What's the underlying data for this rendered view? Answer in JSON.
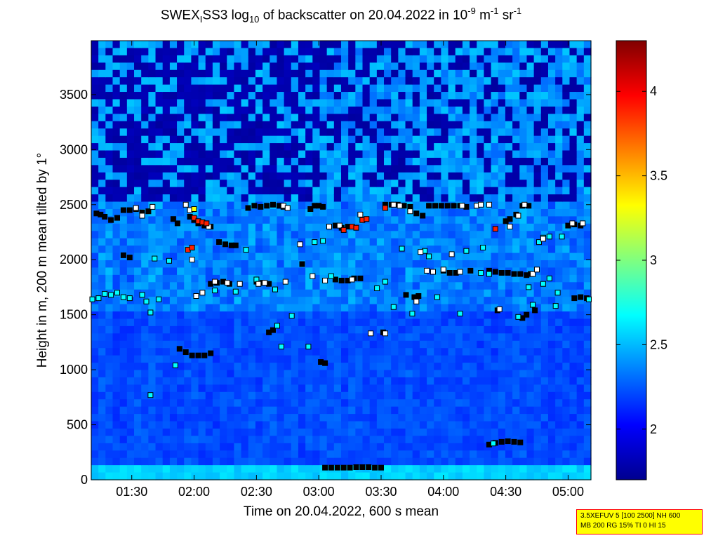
{
  "title": {
    "prefix": "SWEX",
    "sub1": "I",
    "mid": "SS3 log",
    "sub2": "10",
    "rest": " of backscatter on 20.04.2022 in 10",
    "sup1": "-9",
    "unit1": " m",
    "sup2": "-1",
    "unit2": " sr",
    "sup3": "-1"
  },
  "info_box": {
    "line1": "3.5XEFUV 5 [100 2500] NH 600",
    "line2": "MB 200 RG 15% TI 0 HI 15"
  },
  "chart_data": {
    "type": "heatmap",
    "xlabel": "Time on 20.04.2022, 600 s mean",
    "ylabel": "Height in m, 200 m mean tilted by 1°",
    "x_range_minutes": [
      70.5,
      311
    ],
    "ylim": [
      0,
      3990
    ],
    "xticks": [
      {
        "label": "01:30",
        "value": 90
      },
      {
        "label": "02:00",
        "value": 120
      },
      {
        "label": "02:30",
        "value": 150
      },
      {
        "label": "03:00",
        "value": 180
      },
      {
        "label": "03:30",
        "value": 210
      },
      {
        "label": "04:00",
        "value": 240
      },
      {
        "label": "04:30",
        "value": 270
      },
      {
        "label": "05:00",
        "value": 300
      }
    ],
    "yticks": [
      0,
      500,
      1000,
      1500,
      2000,
      2500,
      3000,
      3500
    ],
    "colorbar": {
      "min": 1.7,
      "max": 4.3,
      "ticks": [
        2,
        2.5,
        3,
        3.5,
        4
      ],
      "colormap": "jet"
    },
    "marker_layers": [
      {
        "level": "low",
        "color": "#000000",
        "points": [
          [
            183,
            110
          ],
          [
            186,
            110
          ],
          [
            189,
            110
          ],
          [
            192,
            110
          ],
          [
            195,
            110
          ],
          [
            198,
            115
          ],
          [
            201,
            115
          ],
          [
            204,
            115
          ],
          [
            207,
            110
          ],
          [
            210,
            110
          ],
          [
            262,
            320
          ],
          [
            265,
            335
          ],
          [
            268,
            345
          ],
          [
            271,
            350
          ],
          [
            274,
            345
          ],
          [
            277,
            340
          ]
        ]
      },
      {
        "level": "mid",
        "color": "#000000",
        "points": [
          [
            73,
            2420
          ],
          [
            75,
            2410
          ],
          [
            77,
            2390
          ],
          [
            80,
            2360
          ],
          [
            83,
            2380
          ],
          [
            86,
            2450
          ],
          [
            89,
            2450
          ],
          [
            92,
            2460
          ],
          [
            95,
            2430
          ],
          [
            98,
            2440
          ],
          [
            110,
            2370
          ],
          [
            112,
            2330
          ],
          [
            118,
            2390
          ],
          [
            120,
            2360
          ],
          [
            122,
            2330
          ],
          [
            125,
            2310
          ],
          [
            128,
            2300
          ],
          [
            146,
            2470
          ],
          [
            149,
            2490
          ],
          [
            152,
            2480
          ],
          [
            155,
            2490
          ],
          [
            158,
            2500
          ],
          [
            161,
            2490
          ],
          [
            163,
            2480
          ],
          [
            172,
            1960
          ],
          [
            176,
            2460
          ],
          [
            178,
            2490
          ],
          [
            180,
            2490
          ],
          [
            182,
            2480
          ],
          [
            185,
            2300
          ],
          [
            188,
            2310
          ],
          [
            191,
            2290
          ],
          [
            194,
            2300
          ],
          [
            212,
            2500
          ],
          [
            215,
            2500
          ],
          [
            218,
            2500
          ],
          [
            221,
            2490
          ],
          [
            224,
            2480
          ],
          [
            227,
            2420
          ],
          [
            230,
            2400
          ],
          [
            233,
            2490
          ],
          [
            236,
            2490
          ],
          [
            239,
            2490
          ],
          [
            242,
            2490
          ],
          [
            245,
            2490
          ],
          [
            248,
            2490
          ],
          [
            251,
            2480
          ],
          [
            270,
            2350
          ],
          [
            272,
            2370
          ],
          [
            275,
            2410
          ],
          [
            278,
            2490
          ],
          [
            281,
            2490
          ],
          [
            300,
            2310
          ],
          [
            303,
            2320
          ],
          [
            306,
            2310
          ],
          [
            86,
            2040
          ],
          [
            89,
            2020
          ],
          [
            113,
            1190
          ],
          [
            116,
            1160
          ],
          [
            119,
            1130
          ],
          [
            122,
            1130
          ],
          [
            125,
            1130
          ],
          [
            128,
            1150
          ],
          [
            132,
            2160
          ],
          [
            135,
            2140
          ],
          [
            138,
            2130
          ],
          [
            140,
            2130
          ],
          [
            128,
            1780
          ],
          [
            131,
            1790
          ],
          [
            134,
            1800
          ],
          [
            137,
            1780
          ],
          [
            150,
            1800
          ],
          [
            153,
            1790
          ],
          [
            156,
            1780
          ],
          [
            188,
            1820
          ],
          [
            191,
            1810
          ],
          [
            194,
            1810
          ],
          [
            197,
            1830
          ],
          [
            200,
            1830
          ],
          [
            240,
            1900
          ],
          [
            243,
            1880
          ],
          [
            246,
            1880
          ],
          [
            262,
            1900
          ],
          [
            265,
            1890
          ],
          [
            268,
            1880
          ],
          [
            271,
            1880
          ],
          [
            274,
            1870
          ],
          [
            277,
            1870
          ],
          [
            280,
            1860
          ],
          [
            282,
            1870
          ],
          [
            156,
            1340
          ],
          [
            158,
            1360
          ],
          [
            181,
            1070
          ],
          [
            183,
            1060
          ],
          [
            211,
            1340
          ],
          [
            222,
            1680
          ],
          [
            226,
            1660
          ],
          [
            228,
            1670
          ],
          [
            253,
            1900
          ],
          [
            303,
            1650
          ],
          [
            306,
            1660
          ],
          [
            309,
            1650
          ],
          [
            266,
            1540
          ],
          [
            278,
            1470
          ],
          [
            280,
            1500
          ],
          [
            284,
            1540
          ]
        ]
      },
      {
        "level": "cyan",
        "color": "#00ffff",
        "points": [
          [
            71,
            1640
          ],
          [
            74,
            1650
          ],
          [
            77,
            1690
          ],
          [
            80,
            1680
          ],
          [
            83,
            1700
          ],
          [
            86,
            1660
          ],
          [
            89,
            1650
          ],
          [
            95,
            1680
          ],
          [
            97,
            1620
          ],
          [
            99,
            1520
          ],
          [
            101,
            2010
          ],
          [
            103,
            1640
          ],
          [
            108,
            1990
          ],
          [
            111,
            1040
          ],
          [
            130,
            1720
          ],
          [
            140,
            1710
          ],
          [
            145,
            2090
          ],
          [
            150,
            1820
          ],
          [
            159,
            1730
          ],
          [
            160,
            1400
          ],
          [
            162,
            1210
          ],
          [
            167,
            1490
          ],
          [
            175,
            1210
          ],
          [
            178,
            2160
          ],
          [
            182,
            2170
          ],
          [
            186,
            1850
          ],
          [
            208,
            1740
          ],
          [
            212,
            1800
          ],
          [
            216,
            1570
          ],
          [
            220,
            2100
          ],
          [
            225,
            1510
          ],
          [
            231,
            2080
          ],
          [
            233,
            2030
          ],
          [
            237,
            1660
          ],
          [
            248,
            1510
          ],
          [
            251,
            2080
          ],
          [
            259,
            2110
          ],
          [
            276,
            1480
          ],
          [
            283,
            1590
          ],
          [
            286,
            2160
          ],
          [
            288,
            2200
          ],
          [
            291,
            2210
          ],
          [
            294,
            1580
          ],
          [
            288,
            1780
          ],
          [
            291,
            1830
          ],
          [
            295,
            1700
          ],
          [
            297,
            2210
          ],
          [
            310,
            1640
          ],
          [
            99,
            770
          ],
          [
            264,
            330
          ],
          [
            281,
            1750
          ],
          [
            262,
            1870
          ],
          [
            258,
            1880
          ]
        ]
      },
      {
        "level": "white",
        "color": "#ffffff",
        "points": [
          [
            92,
            2470
          ],
          [
            95,
            2400
          ],
          [
            100,
            2480
          ],
          [
            116,
            2500
          ],
          [
            118,
            2450
          ],
          [
            119,
            2000
          ],
          [
            121,
            1670
          ],
          [
            124,
            1700
          ],
          [
            127,
            2300
          ],
          [
            130,
            1800
          ],
          [
            136,
            1790
          ],
          [
            142,
            1780
          ],
          [
            151,
            1780
          ],
          [
            154,
            1790
          ],
          [
            163,
            2490
          ],
          [
            171,
            2140
          ],
          [
            177,
            1850
          ],
          [
            183,
            1810
          ],
          [
            185,
            2300
          ],
          [
            190,
            2310
          ],
          [
            196,
            1820
          ],
          [
            200,
            2410
          ],
          [
            205,
            1330
          ],
          [
            212,
            1330
          ],
          [
            216,
            2500
          ],
          [
            219,
            2490
          ],
          [
            224,
            2440
          ],
          [
            227,
            1620
          ],
          [
            229,
            2070
          ],
          [
            232,
            1900
          ],
          [
            235,
            1890
          ],
          [
            244,
            2050
          ],
          [
            249,
            2490
          ],
          [
            256,
            2490
          ],
          [
            258,
            2500
          ],
          [
            267,
            1550
          ],
          [
            272,
            2300
          ],
          [
            276,
            2400
          ],
          [
            279,
            2500
          ],
          [
            283,
            1870
          ],
          [
            288,
            2190
          ],
          [
            302,
            2330
          ],
          [
            307,
            2330
          ],
          [
            285,
            1910
          ],
          [
            240,
            1910
          ],
          [
            262,
            2500
          ],
          [
            248,
            1890
          ],
          [
            164,
            1800
          ],
          [
            165,
            2470
          ]
        ]
      },
      {
        "level": "high",
        "color": "#ff2000",
        "points": [
          [
            117,
            2090
          ],
          [
            119,
            2110
          ],
          [
            120,
            2380
          ],
          [
            122,
            2350
          ],
          [
            124,
            2340
          ],
          [
            126,
            2330
          ],
          [
            192,
            2270
          ],
          [
            196,
            2300
          ],
          [
            198,
            2290
          ],
          [
            201,
            2360
          ],
          [
            203,
            2370
          ],
          [
            212,
            2470
          ],
          [
            265,
            2280
          ]
        ]
      },
      {
        "level": "yellow",
        "color": "#ffff00",
        "points": [
          [
            120,
            2460
          ]
        ]
      }
    ]
  }
}
